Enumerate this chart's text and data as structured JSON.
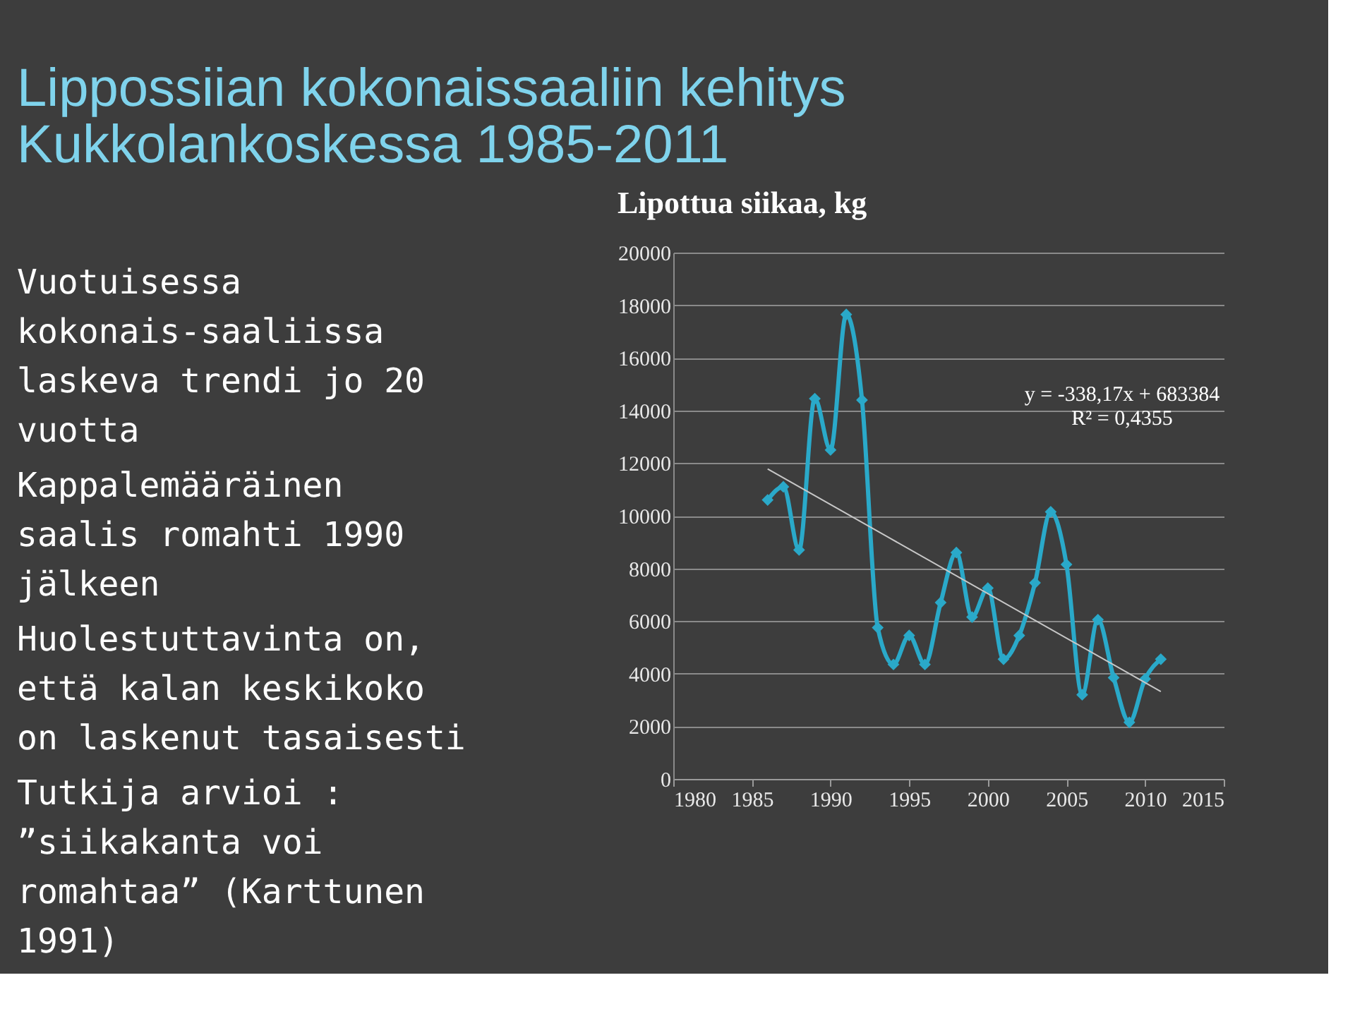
{
  "chart_data": {
    "type": "line",
    "title": "Lippossiian kokonaissaaliin kehitys\nKukkolankoskessa 1985-2011",
    "subtitle": "Lipottua siikaa, kg",
    "x": [
      1986,
      1987,
      1988,
      1989,
      1990,
      1991,
      1992,
      1993,
      1994,
      1995,
      1996,
      1997,
      1998,
      1999,
      2000,
      2001,
      2002,
      2003,
      2004,
      2005,
      2006,
      2007,
      2008,
      2009,
      2010,
      2011
    ],
    "series": [
      {
        "color": "#2aa9c9",
        "values": [
          10600,
          11100,
          8700,
          14450,
          12500,
          17650,
          14400,
          5750,
          4350,
          5450,
          4350,
          6700,
          8600,
          6150,
          7250,
          4550,
          5450,
          7450,
          10150,
          8150,
          3200,
          6050,
          3850,
          2150,
          3800,
          4550
        ]
      },
      {
        "color": "#c8c8c8",
        "marker": "none",
        "x": [
          1986,
          2011
        ],
        "values": [
          11780,
          3320
        ]
      }
    ],
    "annotations": [
      "Vuotuisessa\nkokonais-saaliissa\nlaskeva trendi jo 20\nvuotta",
      "Kappalemääräinen\nsaalis romahti 1990\njälkeen",
      "Huolestuttavinta on,\nettä kalan keskikoko\non laskenut tasaisesti",
      "Tutkija arvioi :\n”siikakanta voi\nromahtaa” (Karttunen\n1991)",
      "y = -338,17x + 683384\nR² = 0,4355"
    ],
    "xlim": [
      1980,
      2015
    ],
    "xticks": [
      1980,
      1985,
      1990,
      1995,
      2000,
      2005,
      2010,
      2015
    ],
    "ylim": [
      0,
      20000
    ],
    "yticks": [
      0,
      2000,
      4000,
      6000,
      8000,
      10000,
      12000,
      14000,
      16000,
      18000,
      20000
    ],
    "grid": "y",
    "marker": "diamond"
  }
}
